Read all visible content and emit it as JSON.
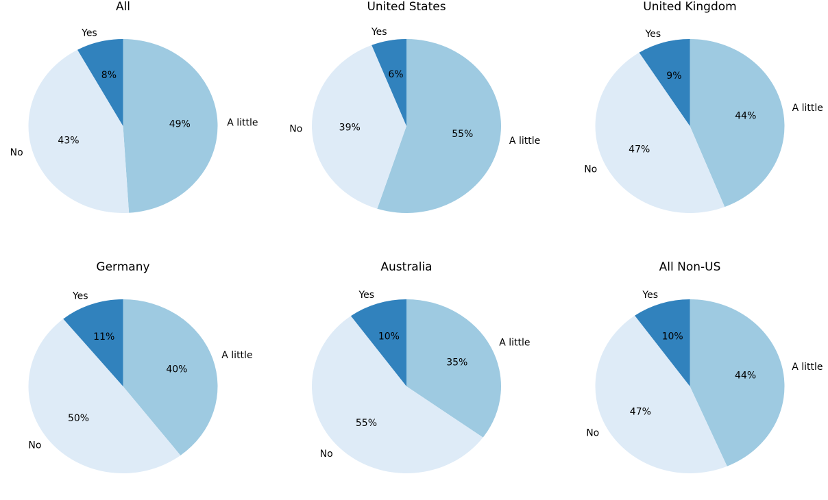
{
  "colors": {
    "A little": "#9ecae1",
    "No": "#deebf7",
    "Yes": "#3182bd"
  },
  "chart_data": [
    {
      "type": "pie",
      "title": "All",
      "labels": [
        "A little",
        "No",
        "Yes"
      ],
      "values": [
        49,
        43,
        8
      ],
      "pct_labels": [
        "49%",
        "43%",
        "8%"
      ],
      "startangle": 90,
      "direction": "clockwise"
    },
    {
      "type": "pie",
      "title": "United States",
      "labels": [
        "A little",
        "No",
        "Yes"
      ],
      "values": [
        55,
        39,
        6
      ],
      "pct_labels": [
        "55%",
        "39%",
        "6%"
      ],
      "startangle": 90,
      "direction": "clockwise"
    },
    {
      "type": "pie",
      "title": "United Kingdom",
      "labels": [
        "A little",
        "No",
        "Yes"
      ],
      "values": [
        44,
        47,
        9
      ],
      "pct_labels": [
        "44%",
        "47%",
        "9%"
      ],
      "startangle": 90,
      "direction": "clockwise"
    },
    {
      "type": "pie",
      "title": "Germany",
      "labels": [
        "A little",
        "No",
        "Yes"
      ],
      "values": [
        40,
        50,
        11
      ],
      "pct_labels": [
        "40%",
        "50%",
        "11%"
      ],
      "startangle": 90,
      "direction": "clockwise"
    },
    {
      "type": "pie",
      "title": "Australia",
      "labels": [
        "A little",
        "No",
        "Yes"
      ],
      "values": [
        35,
        55,
        10
      ],
      "pct_labels": [
        "35%",
        "55%",
        "10%"
      ],
      "startangle": 90,
      "direction": "clockwise"
    },
    {
      "type": "pie",
      "title": "All Non-US",
      "labels": [
        "A little",
        "No",
        "Yes"
      ],
      "values": [
        44,
        47,
        10
      ],
      "pct_labels": [
        "44%",
        "47%",
        "10%"
      ],
      "startangle": 90,
      "direction": "clockwise"
    }
  ]
}
